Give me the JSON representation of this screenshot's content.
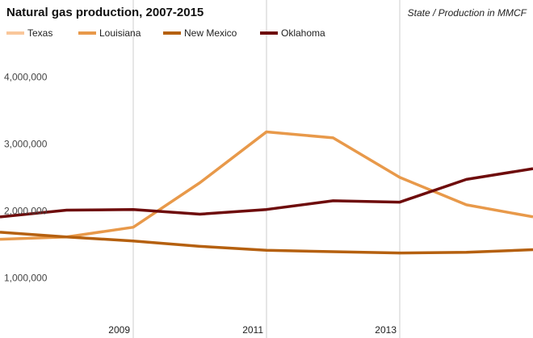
{
  "chart_data": {
    "type": "line",
    "title": "Natural gas production, 2007-2015",
    "subtitle": "State / Production in MMCF",
    "x": [
      2007,
      2008,
      2009,
      2010,
      2011,
      2012,
      2013,
      2014,
      2015
    ],
    "xlim": [
      2007,
      2015
    ],
    "xticks": [
      2009,
      2011,
      2013
    ],
    "ylim": [
      200000,
      5250000
    ],
    "yticks": [
      {
        "value": 1000000,
        "label": "1,000,000"
      },
      {
        "value": 2000000,
        "label": "2,000,000"
      },
      {
        "value": 3000000,
        "label": "3,000,000"
      },
      {
        "value": 4000000,
        "label": "4,000,000"
      }
    ],
    "grid": "x",
    "legend": "top-left",
    "series": [
      {
        "name": "Texas",
        "color": "#f9c79b",
        "values": [
          null,
          null,
          null,
          null,
          null,
          null,
          null,
          null,
          null
        ]
      },
      {
        "name": "Louisiana",
        "color": "#e8994a",
        "values": [
          1675000,
          1710000,
          1855000,
          2520000,
          3280000,
          3190000,
          2600000,
          2190000,
          2010000
        ]
      },
      {
        "name": "New Mexico",
        "color": "#b5600f",
        "values": [
          1780000,
          1710000,
          1650000,
          1570000,
          1510000,
          1490000,
          1470000,
          1480000,
          1520000
        ]
      },
      {
        "name": "Oklahoma",
        "color": "#6e0b0b",
        "values": [
          2010000,
          2110000,
          2120000,
          2050000,
          2120000,
          2250000,
          2230000,
          2570000,
          2730000
        ]
      }
    ]
  }
}
